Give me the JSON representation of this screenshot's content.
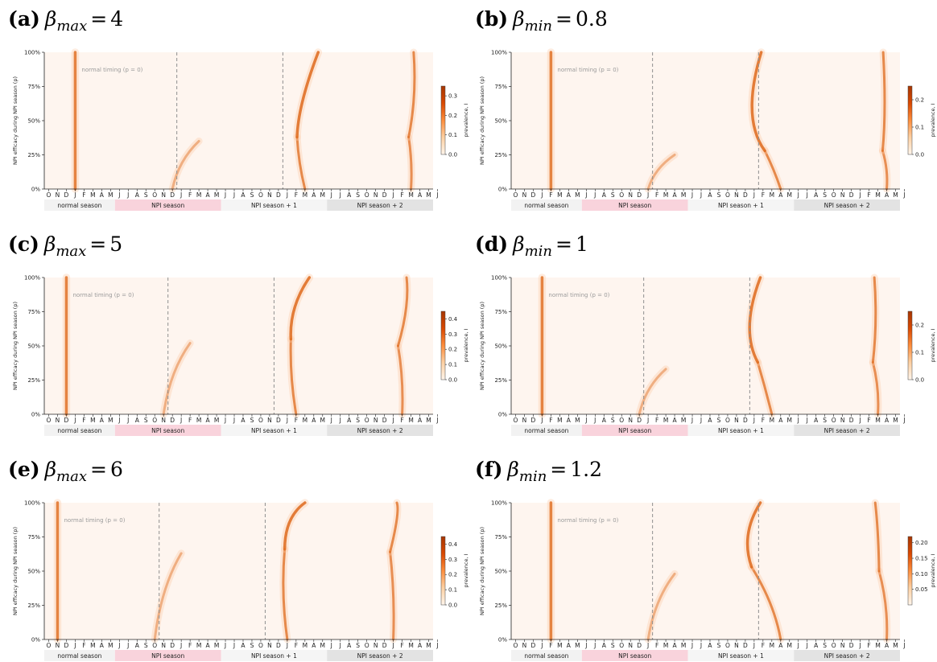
{
  "chart_data": [
    {
      "panel": "(a)",
      "param": "max",
      "value": "4",
      "colorbar": {
        "label": "prevalence, I",
        "ticks": [
          "0.0",
          "0.1",
          "0.2",
          "0.3"
        ],
        "max": 0.35
      },
      "curves": {
        "normal_x": 0.5,
        "wave1_end": 0.35,
        "npi1_low": [
          9.5,
          9.7
        ],
        "npi1_high": [
          9.5,
          11.0
        ],
        "npi2_low": [
          9.5,
          9.6
        ],
        "npi2_high": [
          9.5,
          9.8
        ],
        "npi1_split": 0.38,
        "npi2_split": 0.38
      }
    },
    {
      "panel": "(b)",
      "param": "min",
      "value": "0.8",
      "colorbar": {
        "label": "prevalence, I",
        "ticks": [
          "0.0",
          "0.1",
          "0.2"
        ],
        "max": 0.25
      },
      "curves": {
        "normal_x": 1.5,
        "wave1_end": 0.25,
        "npi1_low": [
          10.5,
          9.8
        ],
        "npi1_high": [
          10.5,
          8.3
        ],
        "npi2_low": [
          10.5,
          10.4
        ],
        "npi2_high": [
          10.5,
          10.1
        ],
        "npi1_split": 0.28,
        "npi2_split": 0.28
      }
    },
    {
      "panel": "(c)",
      "param": "max",
      "value": "5",
      "colorbar": {
        "label": "prevalence, I",
        "ticks": [
          "0.0",
          "0.1",
          "0.2",
          "0.3",
          "0.4"
        ],
        "max": 0.45
      },
      "curves": {
        "normal_x": -0.5,
        "wave1_end": 0.52,
        "npi1_low": [
          8.5,
          9.0
        ],
        "npi1_high": [
          8.5,
          10.0
        ],
        "npi2_low": [
          8.5,
          8.4
        ],
        "npi2_high": [
          8.5,
          9.0
        ],
        "npi1_split": 0.55,
        "npi2_split": 0.5
      }
    },
    {
      "panel": "(d)",
      "param": "min",
      "value": "1",
      "colorbar": {
        "label": "prevalence, I",
        "ticks": [
          "0.0",
          "0.1",
          "0.2"
        ],
        "max": 0.25
      },
      "curves": {
        "normal_x": 0.5,
        "wave1_end": 0.33,
        "npi1_low": [
          9.5,
          9.0
        ],
        "npi1_high": [
          9.5,
          8.2
        ],
        "npi2_low": [
          9.5,
          9.3
        ],
        "npi2_high": [
          9.5,
          9.1
        ],
        "npi1_split": 0.38,
        "npi2_split": 0.38
      }
    },
    {
      "panel": "(e)",
      "param": "max",
      "value": "6",
      "colorbar": {
        "label": "prevalence, I",
        "ticks": [
          "0.0",
          "0.1",
          "0.2",
          "0.3",
          "0.4"
        ],
        "max": 0.45
      },
      "curves": {
        "normal_x": -1.5,
        "wave1_end": 0.63,
        "npi1_low": [
          7.5,
          8.3
        ],
        "npi1_high": [
          7.5,
          9.5
        ],
        "npi2_low": [
          7.5,
          7.5
        ],
        "npi2_high": [
          7.5,
          7.9
        ],
        "npi1_split": 0.66,
        "npi2_split": 0.64
      }
    },
    {
      "panel": "(f)",
      "param": "min",
      "value": "1.2",
      "colorbar": {
        "label": "prevalence, I",
        "ticks": [
          "0.05",
          "0.10",
          "0.15",
          "0.20"
        ],
        "max": 0.22
      },
      "curves": {
        "normal_x": 1.5,
        "wave1_end": 0.48,
        "npi1_low": [
          10.5,
          8.3
        ],
        "npi1_high": [
          10.5,
          8.2
        ],
        "npi2_low": [
          10.5,
          10.0
        ],
        "npi2_high": [
          10.5,
          9.2
        ],
        "npi1_split": 0.53,
        "npi2_split": 0.5
      }
    }
  ],
  "shared": {
    "ylabel": "NPI efficacy during NPI season (p)",
    "yticks": [
      "0%",
      "25%",
      "50%",
      "75%",
      "100%"
    ],
    "normal_months": [
      "O",
      "N",
      "D",
      "J",
      "F",
      "M",
      "A",
      "M"
    ],
    "year_months": [
      "J",
      "J",
      "A",
      "S",
      "O",
      "N",
      "D",
      "J",
      "F",
      "M",
      "A",
      "M"
    ],
    "final_month": "J",
    "seasons": [
      "normal season",
      "NPI season",
      "NPI season + 1",
      "NPI season + 2"
    ],
    "season_colors": [
      "#f2f2f2",
      "#f9d3dc",
      "#f5f5f5",
      "#e3e3e3"
    ],
    "annotation": "normal timing (p = 0)",
    "colormap": [
      "#fff5eb",
      "#fdd0a2",
      "#fd8d3c",
      "#d94801",
      "#a63603"
    ]
  }
}
